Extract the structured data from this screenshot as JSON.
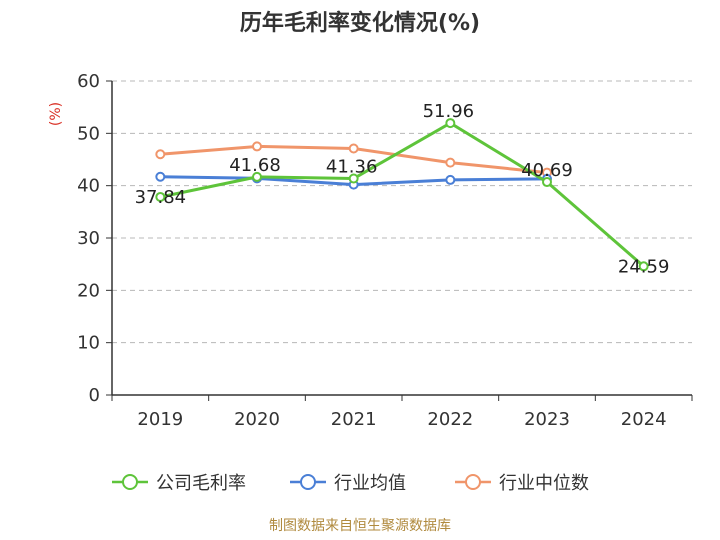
{
  "chart_data": {
    "type": "line",
    "title": "历年毛利率变化情况(%)",
    "ylabel": "(%)",
    "xlabel": "",
    "categories": [
      "2019",
      "2020",
      "2021",
      "2022",
      "2023",
      "2024"
    ],
    "ylim": [
      0,
      60
    ],
    "yticks": [
      0,
      10,
      20,
      30,
      40,
      50,
      60
    ],
    "grid": true,
    "legend_position": "bottom",
    "series": [
      {
        "name": "公司毛利率",
        "color": "#5ec43a",
        "values": [
          37.84,
          41.68,
          41.36,
          51.96,
          40.69,
          24.59
        ],
        "labels": [
          "37.84",
          "41.68",
          "41.36",
          "51.96",
          "40.69",
          "24.59"
        ]
      },
      {
        "name": "行业均值",
        "color": "#4a7fd6",
        "values": [
          41.7,
          41.4,
          40.2,
          41.1,
          41.3,
          null
        ]
      },
      {
        "name": "行业中位数",
        "color": "#f0956a",
        "values": [
          46.0,
          47.5,
          47.1,
          44.4,
          42.5,
          null
        ]
      }
    ]
  },
  "source": "制图数据来自恒生聚源数据库"
}
